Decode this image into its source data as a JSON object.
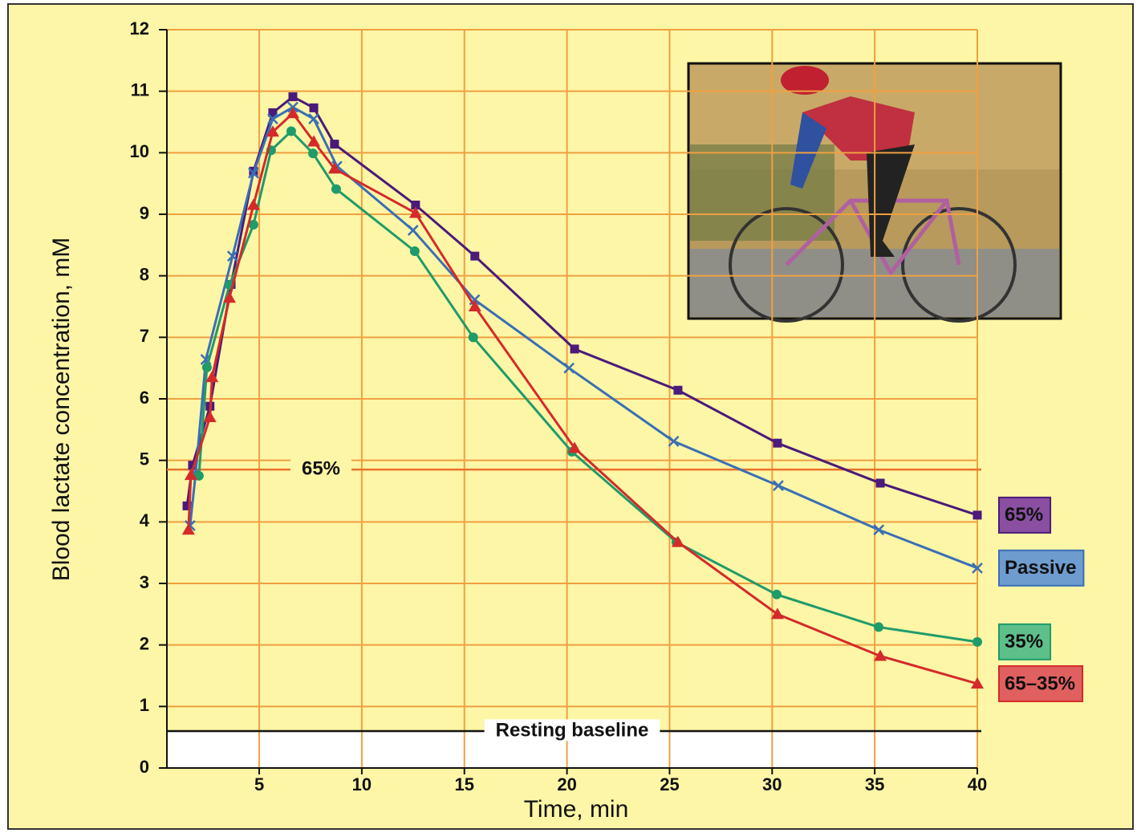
{
  "chart_data": {
    "type": "line",
    "x_label": "Time, min",
    "y_label": "Blood lactate concentration, mM",
    "xlim": [
      0.5,
      40
    ],
    "ylim": [
      0,
      12
    ],
    "xticks": [
      5,
      10,
      15,
      20,
      25,
      30,
      35,
      40
    ],
    "yticks": [
      0,
      1,
      2,
      3,
      4,
      5,
      6,
      7,
      8,
      9,
      10,
      11,
      12
    ],
    "grid": true,
    "grid_color": "#f0a040",
    "reference_lines": [
      {
        "value": 4.85,
        "label": "65%",
        "color": "#e8732a"
      },
      {
        "value": 0.6,
        "label": "Resting baseline",
        "color": "#111111",
        "fill_below": "#ffffff"
      }
    ],
    "series": [
      {
        "name": "65%",
        "color": "#4b1a7a",
        "legend_color": "#8a4fa0",
        "marker": "square",
        "x": [
          1.48,
          1.75,
          2.6,
          3.63,
          4.72,
          5.66,
          6.64,
          7.66,
          8.67,
          12.62,
          15.51,
          20.37,
          25.41,
          30.26,
          35.27,
          40
        ],
        "values": [
          4.26,
          4.92,
          5.88,
          7.86,
          9.7,
          10.65,
          10.91,
          10.73,
          10.14,
          9.15,
          8.32,
          6.81,
          6.14,
          5.28,
          4.63,
          4.11
        ]
      },
      {
        "name": "Passive",
        "color": "#3a6fb5",
        "legend_color": "#6f9ccf",
        "marker": "x",
        "x": [
          1.63,
          1.9,
          2.4,
          3.7,
          4.72,
          5.66,
          6.64,
          7.66,
          8.79,
          12.5,
          15.5,
          20.1,
          25.2,
          30.3,
          35.2,
          40
        ],
        "values": [
          3.94,
          4.78,
          6.64,
          8.32,
          9.67,
          10.55,
          10.74,
          10.55,
          9.78,
          8.74,
          7.61,
          6.5,
          5.31,
          4.59,
          3.87,
          3.25
        ]
      },
      {
        "name": "35%",
        "color": "#1f9b6a",
        "legend_color": "#5fbf8a",
        "marker": "circle",
        "x": [
          2.06,
          2.45,
          3.55,
          4.72,
          5.58,
          6.56,
          7.62,
          8.75,
          12.58,
          15.43,
          20.24,
          25.33,
          30.22,
          35.19,
          40
        ],
        "values": [
          4.75,
          6.51,
          7.85,
          8.83,
          10.04,
          10.35,
          9.99,
          9.41,
          8.4,
          7.0,
          5.14,
          3.67,
          2.82,
          2.29,
          2.05
        ]
      },
      {
        "name": "65–35%",
        "color": "#d42a2a",
        "legend_color": "#e06060",
        "marker": "triangle",
        "x": [
          1.55,
          1.67,
          2.6,
          2.7,
          3.55,
          4.72,
          5.66,
          6.64,
          7.66,
          8.67,
          12.62,
          15.51,
          20.37,
          25.41,
          30.26,
          35.27,
          40
        ],
        "values": [
          3.87,
          4.76,
          5.7,
          6.35,
          7.64,
          9.15,
          10.34,
          10.64,
          10.18,
          9.74,
          9.02,
          7.5,
          5.2,
          3.67,
          2.5,
          1.82,
          1.37
        ]
      }
    ]
  }
}
